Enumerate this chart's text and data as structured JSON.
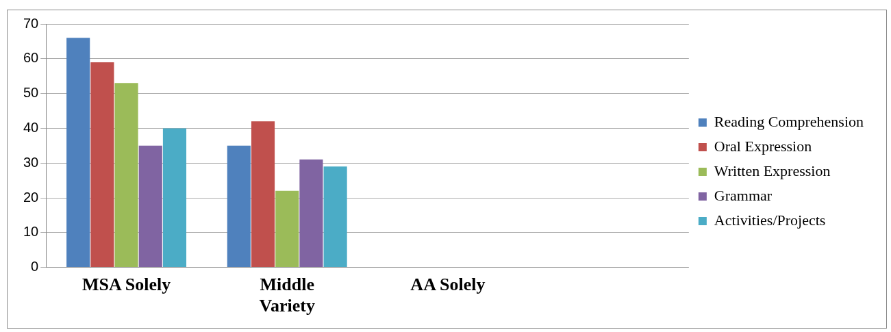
{
  "chart_data": {
    "type": "bar",
    "categories": [
      "MSA Solely",
      "Middle Variety",
      "AA Solely",
      null
    ],
    "series": [
      {
        "name": "Reading Comprehension",
        "color": "#4f81bd",
        "values": [
          66,
          35,
          0,
          0
        ]
      },
      {
        "name": "Oral Expression",
        "color": "#c0504d",
        "values": [
          59,
          42,
          0,
          0
        ]
      },
      {
        "name": "Written Expression",
        "color": "#9bbb59",
        "values": [
          53,
          22,
          0,
          0
        ]
      },
      {
        "name": "Grammar",
        "color": "#8064a2",
        "values": [
          35,
          31,
          0,
          0
        ]
      },
      {
        "name": "Activities/Projects",
        "color": "#4bacc6",
        "values": [
          40,
          29,
          0,
          0
        ]
      }
    ],
    "ylim": [
      0,
      70
    ],
    "yticks": [
      0,
      10,
      20,
      30,
      40,
      50,
      60,
      70
    ],
    "grid": "y",
    "legend": "right"
  }
}
